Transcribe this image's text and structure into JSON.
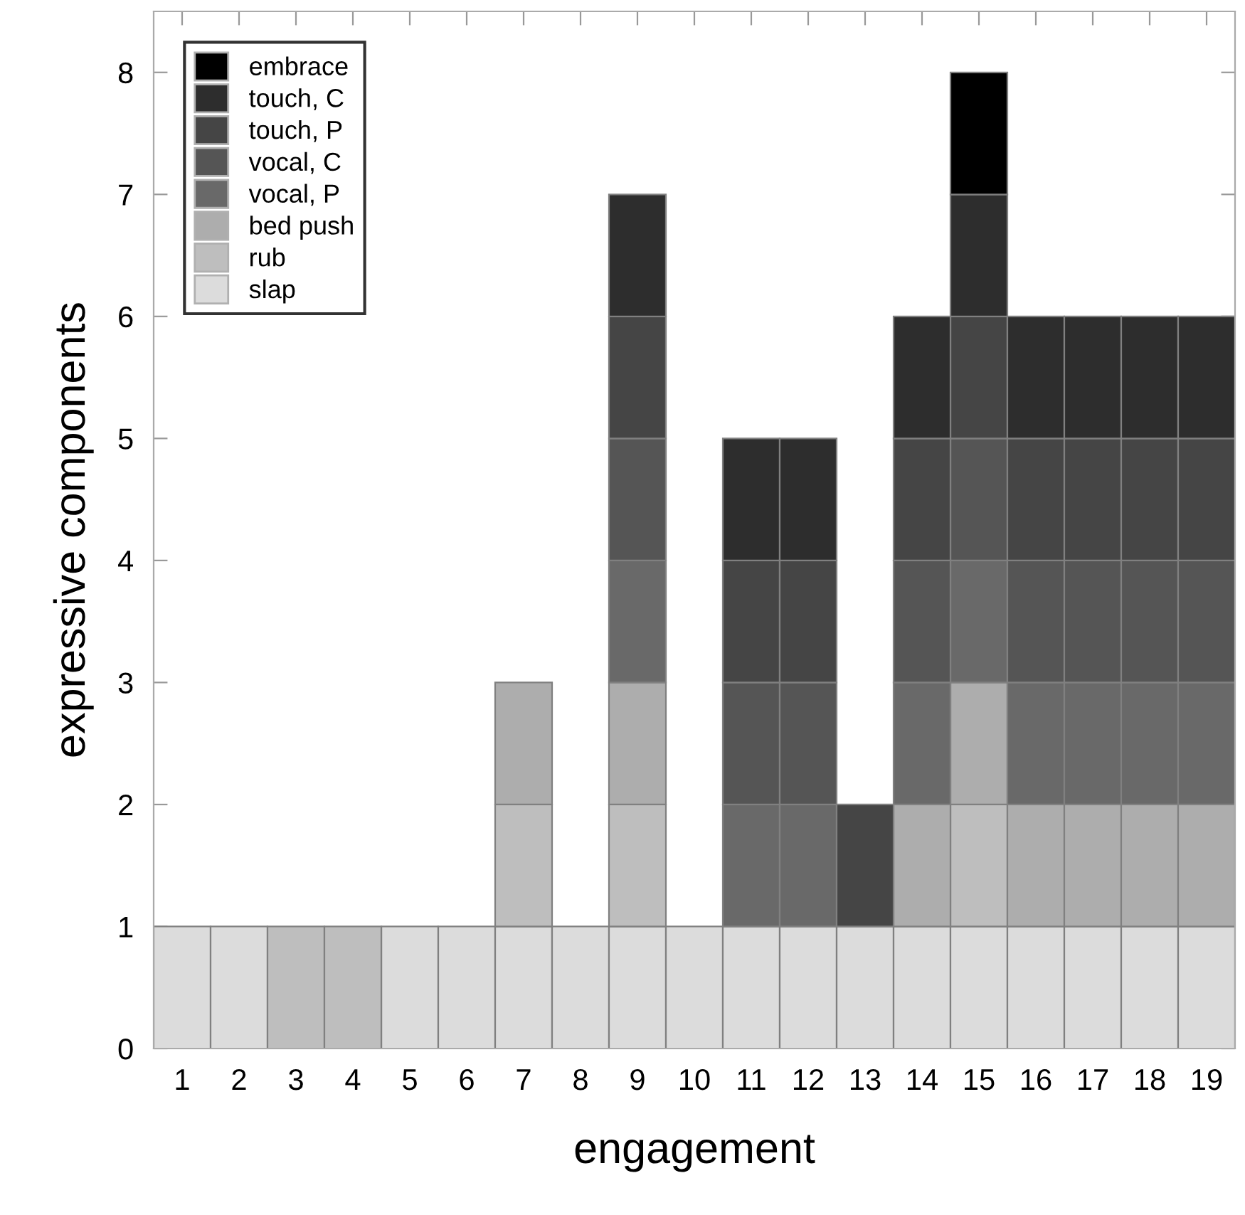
{
  "chart_data": {
    "type": "bar",
    "stacked": true,
    "xlabel": "engagement",
    "ylabel": "expressive components",
    "categories": [
      "1",
      "2",
      "3",
      "4",
      "5",
      "6",
      "7",
      "8",
      "9",
      "10",
      "11",
      "12",
      "13",
      "14",
      "15",
      "16",
      "17",
      "18",
      "19"
    ],
    "series": [
      {
        "name": "slap",
        "color": "#dcdcdc",
        "values": [
          1,
          1,
          0,
          0,
          1,
          1,
          1,
          1,
          1,
          1,
          1,
          1,
          1,
          1,
          1,
          1,
          1,
          1,
          1
        ]
      },
      {
        "name": "rub",
        "color": "#bebebe",
        "values": [
          0,
          0,
          1,
          1,
          0,
          0,
          1,
          0,
          1,
          0,
          0,
          0,
          0,
          0,
          1,
          0,
          0,
          0,
          0
        ]
      },
      {
        "name": "bed push",
        "color": "#adadad",
        "values": [
          0,
          0,
          0,
          0,
          0,
          0,
          1,
          0,
          1,
          0,
          0,
          0,
          0,
          1,
          1,
          1,
          1,
          1,
          1
        ]
      },
      {
        "name": "vocal, P",
        "color": "#696969",
        "values": [
          0,
          0,
          0,
          0,
          0,
          0,
          0,
          0,
          1,
          0,
          1,
          1,
          0,
          1,
          1,
          1,
          1,
          1,
          1
        ]
      },
      {
        "name": "vocal, C",
        "color": "#555555",
        "values": [
          0,
          0,
          0,
          0,
          0,
          0,
          0,
          0,
          1,
          0,
          1,
          1,
          0,
          1,
          1,
          1,
          1,
          1,
          1
        ]
      },
      {
        "name": "touch, P",
        "color": "#454545",
        "values": [
          0,
          0,
          0,
          0,
          0,
          0,
          0,
          0,
          1,
          0,
          1,
          1,
          1,
          1,
          1,
          1,
          1,
          1,
          1
        ]
      },
      {
        "name": "touch, C",
        "color": "#2d2d2d",
        "values": [
          0,
          0,
          0,
          0,
          0,
          0,
          0,
          0,
          1,
          0,
          1,
          1,
          0,
          1,
          1,
          1,
          1,
          1,
          1
        ]
      },
      {
        "name": "embrace",
        "color": "#000000",
        "values": [
          0,
          0,
          0,
          0,
          0,
          0,
          0,
          0,
          0,
          0,
          0,
          0,
          0,
          0,
          1,
          0,
          0,
          0,
          0
        ]
      }
    ],
    "ylim": [
      0,
      8.5
    ],
    "yticks": [
      0,
      1,
      2,
      3,
      4,
      5,
      6,
      7,
      8
    ],
    "grid": false,
    "legend": "top left"
  }
}
